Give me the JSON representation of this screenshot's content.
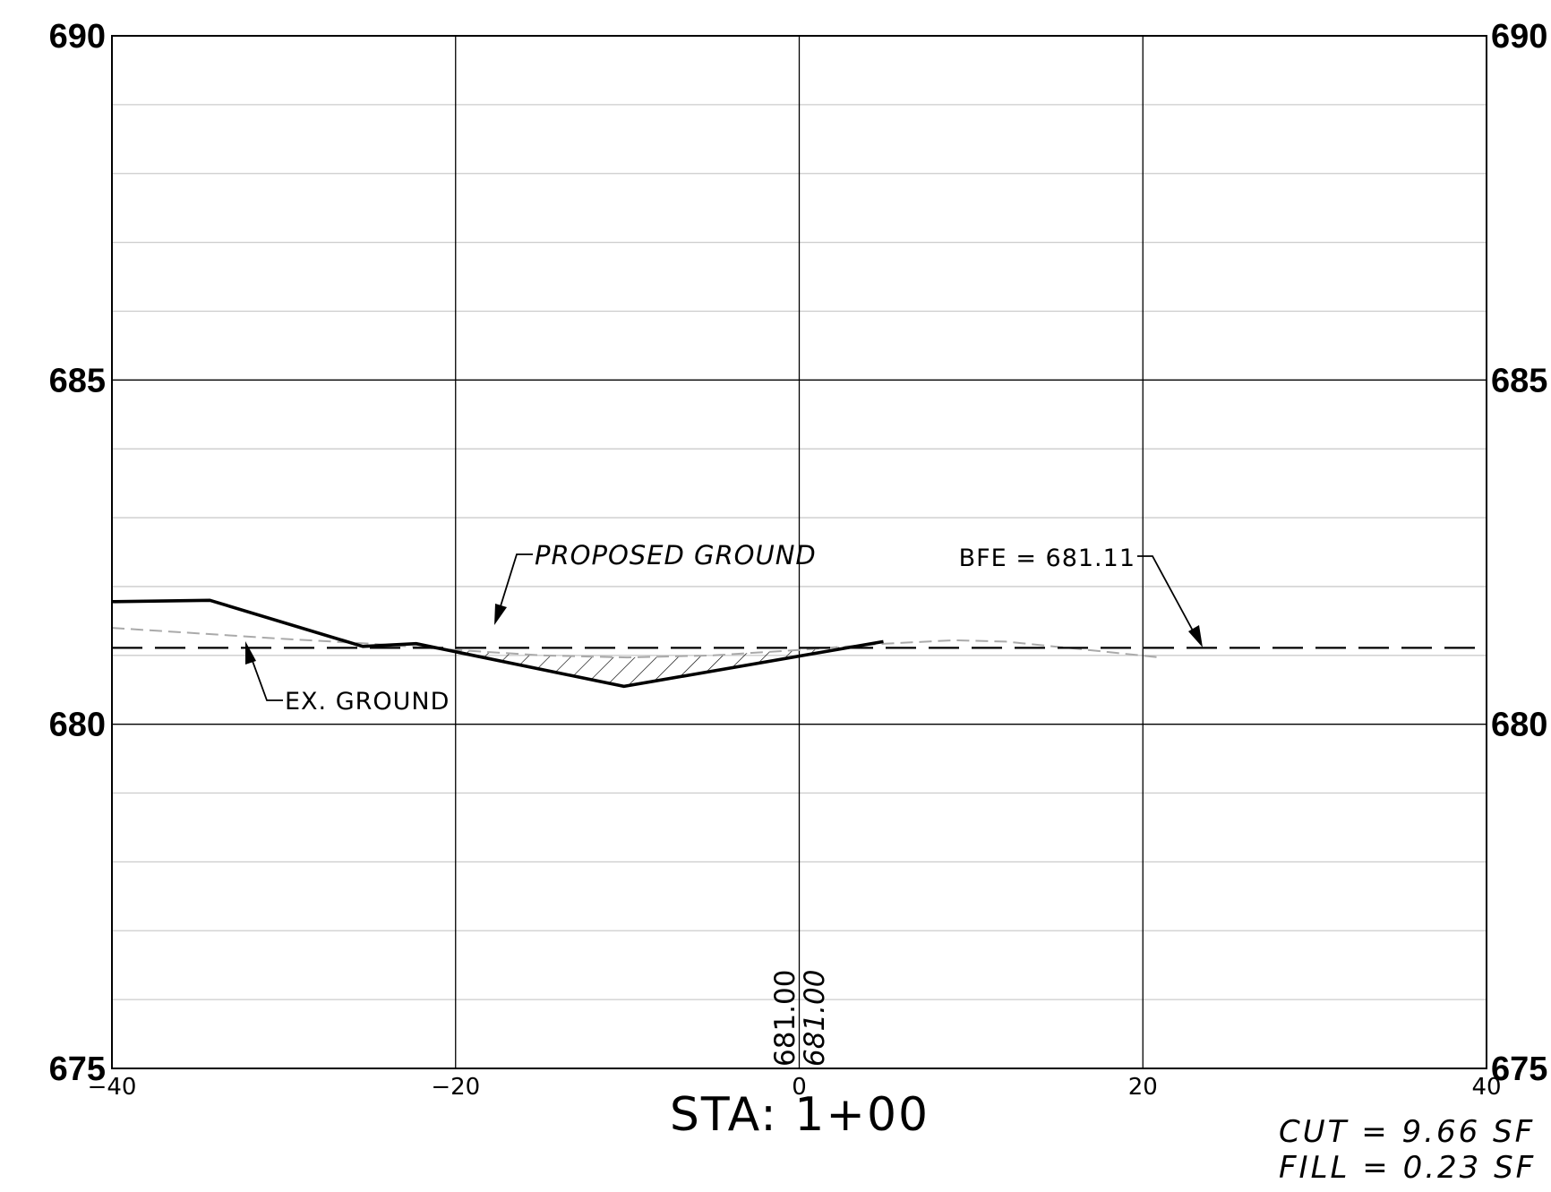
{
  "chart_data": {
    "type": "line",
    "title": "",
    "x_ticks": [
      "-40",
      "-20",
      "0",
      "20",
      "40"
    ],
    "y_ticks_left": [
      "675",
      "680",
      "685",
      "690"
    ],
    "y_ticks_right": [
      "675",
      "680",
      "685",
      "690"
    ],
    "xlim": [
      -40,
      40
    ],
    "ylim": [
      675,
      690
    ],
    "grid": "major every 20 ft / 5 ft, minor every 1 ft elevation",
    "series": [
      {
        "name": "PROPOSED GROUND",
        "style": "solid-thick",
        "color": "#000000",
        "x": [
          -40,
          -34.3,
          -25.4,
          -22.3,
          -10.2,
          4.9
        ],
        "y": [
          681.78,
          681.8,
          681.13,
          681.17,
          680.55,
          681.2
        ]
      },
      {
        "name": "EX. GROUND",
        "style": "dashed-gray",
        "color": "#aaaaaa",
        "x": [
          -40,
          -35,
          -30,
          -25,
          -20,
          -15,
          -10,
          -5,
          0,
          5,
          9,
          12,
          16,
          21
        ],
        "y": [
          681.4,
          681.32,
          681.24,
          681.17,
          681.08,
          681.0,
          680.97,
          681.0,
          681.08,
          681.17,
          681.22,
          681.2,
          681.1,
          680.97
        ]
      },
      {
        "name": "BFE",
        "style": "long-dash",
        "color": "#000000",
        "x": [
          -40,
          40
        ],
        "y": [
          681.11,
          681.11
        ]
      }
    ],
    "cut_hatch_region": {
      "x_from": -21,
      "x_to": 3.5
    },
    "annotations": {
      "proposed_ground": "PROPOSED GROUND",
      "ex_ground": "EX. GROUND",
      "bfe": "BFE = 681.11",
      "elev_existing": "681.00",
      "elev_proposed": "681.00"
    },
    "station": "STA: 1+00",
    "cut": "CUT = 9.66 SF",
    "fill": "FILL = 0.23 SF"
  }
}
